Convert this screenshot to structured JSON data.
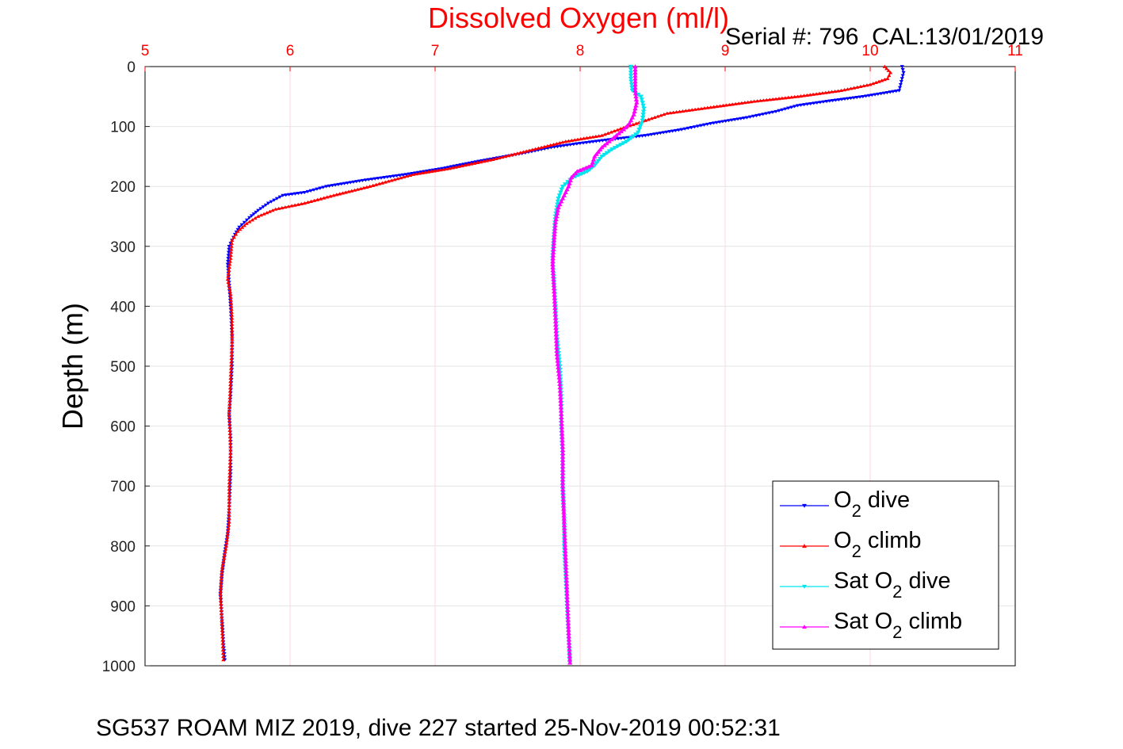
{
  "chart_data": {
    "type": "line",
    "title": "Dissolved Oxygen (ml/l)",
    "subtitle": "Serial #: 796  CAL:13/01/2019",
    "caption": "SG537 ROAM MIZ 2019, dive 227 started 25-Nov-2019 00:52:31",
    "xlabel": "",
    "ylabel": "Depth (m)",
    "xlim": [
      5,
      11
    ],
    "ylim": [
      0,
      1000
    ],
    "y_reversed": true,
    "x_axis_position": "top",
    "x_ticks": [
      "5",
      "6",
      "7",
      "8",
      "9",
      "10",
      "11"
    ],
    "y_ticks": [
      "0",
      "100",
      "200",
      "300",
      "400",
      "500",
      "600",
      "700",
      "800",
      "900",
      "1000"
    ],
    "grid": true,
    "legend_position": "bottom-right",
    "series": [
      {
        "name": "O2 dive",
        "legend": {
          "main": "O",
          "sub": "2",
          "rest": " dive"
        },
        "color": "#0000ff",
        "marker": "triangle-down",
        "points": [
          [
            10.22,
            0
          ],
          [
            10.23,
            10
          ],
          [
            10.22,
            20
          ],
          [
            10.21,
            30
          ],
          [
            10.2,
            40
          ],
          [
            9.95,
            50
          ],
          [
            9.7,
            58
          ],
          [
            9.5,
            65
          ],
          [
            9.35,
            75
          ],
          [
            9.15,
            85
          ],
          [
            8.9,
            95
          ],
          [
            8.7,
            105
          ],
          [
            8.45,
            115
          ],
          [
            8.2,
            122
          ],
          [
            8.0,
            128
          ],
          [
            7.8,
            135
          ],
          [
            7.6,
            145
          ],
          [
            7.3,
            158
          ],
          [
            7.05,
            170
          ],
          [
            6.8,
            180
          ],
          [
            6.5,
            190
          ],
          [
            6.25,
            200
          ],
          [
            6.1,
            210
          ],
          [
            5.95,
            215
          ],
          [
            5.85,
            228
          ],
          [
            5.78,
            240
          ],
          [
            5.72,
            252
          ],
          [
            5.65,
            268
          ],
          [
            5.62,
            280
          ],
          [
            5.6,
            290
          ],
          [
            5.58,
            300
          ],
          [
            5.57,
            330
          ],
          [
            5.58,
            360
          ],
          [
            5.59,
            400
          ],
          [
            5.6,
            450
          ],
          [
            5.6,
            500
          ],
          [
            5.59,
            550
          ],
          [
            5.58,
            580
          ],
          [
            5.59,
            620
          ],
          [
            5.59,
            680
          ],
          [
            5.58,
            740
          ],
          [
            5.57,
            780
          ],
          [
            5.55,
            810
          ],
          [
            5.53,
            850
          ],
          [
            5.52,
            880
          ],
          [
            5.53,
            920
          ],
          [
            5.54,
            960
          ],
          [
            5.55,
            990
          ]
        ]
      },
      {
        "name": "O2 climb",
        "legend": {
          "main": "O",
          "sub": "2",
          "rest": " climb"
        },
        "color": "#ff0000",
        "marker": "triangle-up",
        "points": [
          [
            10.1,
            0
          ],
          [
            10.14,
            10
          ],
          [
            10.12,
            20
          ],
          [
            10.0,
            30
          ],
          [
            9.8,
            40
          ],
          [
            9.5,
            50
          ],
          [
            9.2,
            58
          ],
          [
            8.9,
            68
          ],
          [
            8.6,
            78
          ],
          [
            8.45,
            90
          ],
          [
            8.3,
            102
          ],
          [
            8.15,
            115
          ],
          [
            7.9,
            125
          ],
          [
            7.65,
            140
          ],
          [
            7.4,
            155
          ],
          [
            7.1,
            170
          ],
          [
            6.85,
            180
          ],
          [
            6.55,
            200
          ],
          [
            6.3,
            215
          ],
          [
            6.1,
            228
          ],
          [
            5.9,
            238
          ],
          [
            5.78,
            250
          ],
          [
            5.7,
            262
          ],
          [
            5.64,
            275
          ],
          [
            5.6,
            290
          ],
          [
            5.59,
            320
          ],
          [
            5.57,
            355
          ],
          [
            5.59,
            380
          ],
          [
            5.6,
            420
          ],
          [
            5.6,
            460
          ],
          [
            5.59,
            520
          ],
          [
            5.58,
            580
          ],
          [
            5.59,
            640
          ],
          [
            5.58,
            700
          ],
          [
            5.58,
            760
          ],
          [
            5.56,
            800
          ],
          [
            5.53,
            840
          ],
          [
            5.52,
            880
          ],
          [
            5.53,
            930
          ],
          [
            5.54,
            990
          ]
        ]
      },
      {
        "name": "Sat O2 dive",
        "legend": {
          "main": "Sat O",
          "sub": "2",
          "rest": " dive"
        },
        "color": "#00e5ee",
        "marker": "triangle-down",
        "points": [
          [
            8.35,
            0
          ],
          [
            8.35,
            20
          ],
          [
            8.36,
            40
          ],
          [
            8.42,
            50
          ],
          [
            8.44,
            70
          ],
          [
            8.43,
            90
          ],
          [
            8.4,
            110
          ],
          [
            8.32,
            125
          ],
          [
            8.22,
            138
          ],
          [
            8.15,
            150
          ],
          [
            8.1,
            165
          ],
          [
            8.05,
            175
          ],
          [
            7.95,
            185
          ],
          [
            7.88,
            200
          ],
          [
            7.85,
            220
          ],
          [
            7.83,
            250
          ],
          [
            7.82,
            280
          ],
          [
            7.81,
            320
          ],
          [
            7.82,
            360
          ],
          [
            7.83,
            400
          ],
          [
            7.84,
            450
          ],
          [
            7.86,
            500
          ],
          [
            7.87,
            550
          ],
          [
            7.87,
            600
          ],
          [
            7.88,
            650
          ],
          [
            7.88,
            700
          ],
          [
            7.89,
            750
          ],
          [
            7.89,
            800
          ],
          [
            7.9,
            850
          ],
          [
            7.91,
            900
          ],
          [
            7.92,
            950
          ],
          [
            7.93,
            995
          ]
        ]
      },
      {
        "name": "Sat O2 climb",
        "legend": {
          "main": "Sat O",
          "sub": "2",
          "rest": " climb"
        },
        "color": "#ff00ff",
        "marker": "triangle-up",
        "points": [
          [
            8.38,
            0
          ],
          [
            8.38,
            20
          ],
          [
            8.38,
            40
          ],
          [
            8.39,
            60
          ],
          [
            8.37,
            80
          ],
          [
            8.34,
            95
          ],
          [
            8.3,
            105
          ],
          [
            8.25,
            115
          ],
          [
            8.2,
            125
          ],
          [
            8.15,
            135
          ],
          [
            8.1,
            150
          ],
          [
            8.08,
            165
          ],
          [
            7.98,
            175
          ],
          [
            7.94,
            185
          ],
          [
            7.92,
            200
          ],
          [
            7.89,
            215
          ],
          [
            7.85,
            235
          ],
          [
            7.83,
            260
          ],
          [
            7.82,
            290
          ],
          [
            7.81,
            330
          ],
          [
            7.82,
            370
          ],
          [
            7.83,
            420
          ],
          [
            7.84,
            480
          ],
          [
            7.86,
            530
          ],
          [
            7.87,
            580
          ],
          [
            7.88,
            640
          ],
          [
            7.88,
            700
          ],
          [
            7.89,
            760
          ],
          [
            7.9,
            820
          ],
          [
            7.91,
            880
          ],
          [
            7.92,
            940
          ],
          [
            7.93,
            995
          ]
        ]
      }
    ]
  }
}
